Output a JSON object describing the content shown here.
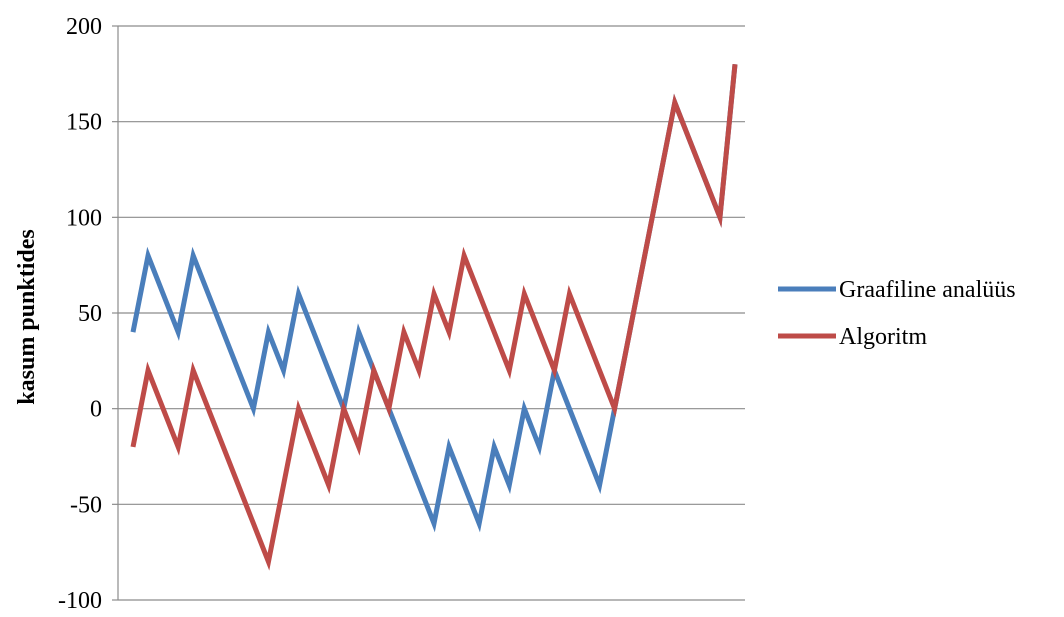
{
  "chart_data": {
    "type": "line",
    "title": "",
    "xlabel": "",
    "ylabel": "kasum punktides",
    "ylim": [
      -100,
      200
    ],
    "yticks": [
      200,
      150,
      100,
      50,
      0,
      -50,
      -100
    ],
    "grid": "horizontal",
    "legend_position": "right",
    "series": [
      {
        "name": "Graafiline analüüs",
        "color": "#4a7ebb",
        "values": [
          40,
          80,
          60,
          40,
          80,
          60,
          40,
          20,
          0,
          40,
          20,
          60,
          40,
          20,
          0,
          40,
          20,
          0,
          -20,
          -40,
          -60,
          -20,
          -40,
          -60,
          -20,
          -40,
          0,
          -20,
          20,
          0,
          -20,
          -40,
          0,
          40,
          80,
          120,
          160,
          140,
          120,
          100,
          180
        ]
      },
      {
        "name": "Algoritm",
        "color": "#be4b48",
        "values": [
          -20,
          20,
          0,
          -20,
          20,
          0,
          -20,
          -40,
          -60,
          -80,
          -40,
          0,
          -20,
          -40,
          0,
          -20,
          20,
          0,
          40,
          20,
          60,
          40,
          80,
          60,
          40,
          20,
          60,
          40,
          20,
          60,
          40,
          20,
          0,
          40,
          80,
          120,
          160,
          140,
          120,
          100,
          180
        ]
      }
    ]
  }
}
